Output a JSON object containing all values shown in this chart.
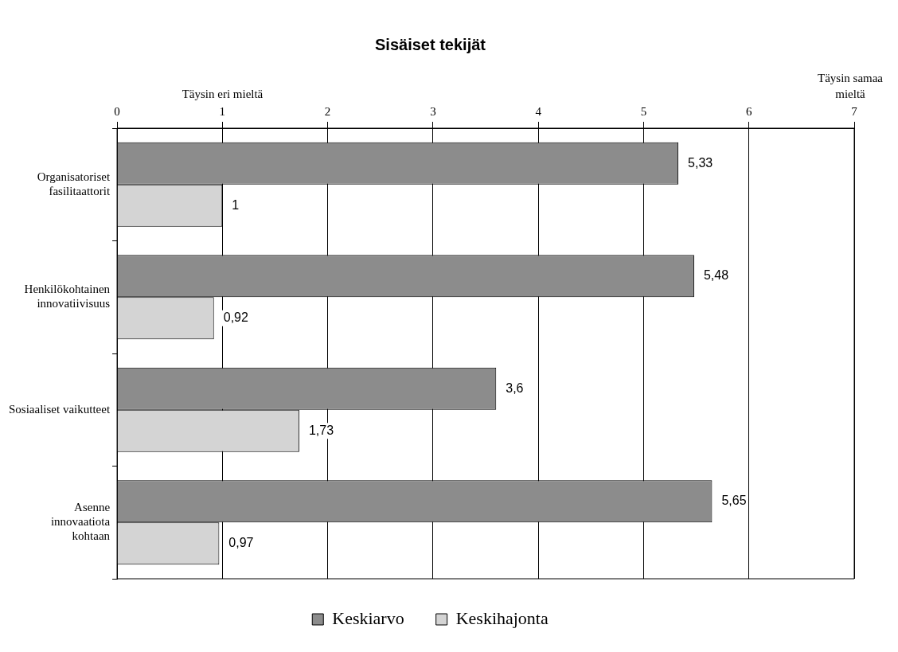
{
  "chart_data": {
    "type": "bar",
    "orientation": "horizontal",
    "title": "Sisäiset tekijät",
    "categories": [
      "Organisatoriset fasilitaattorit",
      "Henkilökohtainen innovatiivisuus",
      "Sosiaaliset vaikutteet",
      "Asenne innovaatiota kohtaan"
    ],
    "series": [
      {
        "name": "Keskiarvo",
        "color": "#8c8c8c",
        "values": [
          5.33,
          5.48,
          3.6,
          5.65
        ],
        "value_labels": [
          "5,33",
          "5,48",
          "3,6",
          "5,65"
        ]
      },
      {
        "name": "Keskihajonta",
        "color": "#d4d4d4",
        "values": [
          1,
          0.92,
          1.73,
          0.97
        ],
        "value_labels": [
          "1",
          "0,92",
          "1,73",
          "0,97"
        ]
      }
    ],
    "xlim": [
      0,
      7
    ],
    "xticks": [
      0,
      1,
      2,
      3,
      4,
      5,
      6,
      7
    ],
    "grid": "x",
    "legend": "bottom",
    "annotations": [
      "Täysin eri mieltä",
      "Täysin samaa mieltä"
    ]
  }
}
